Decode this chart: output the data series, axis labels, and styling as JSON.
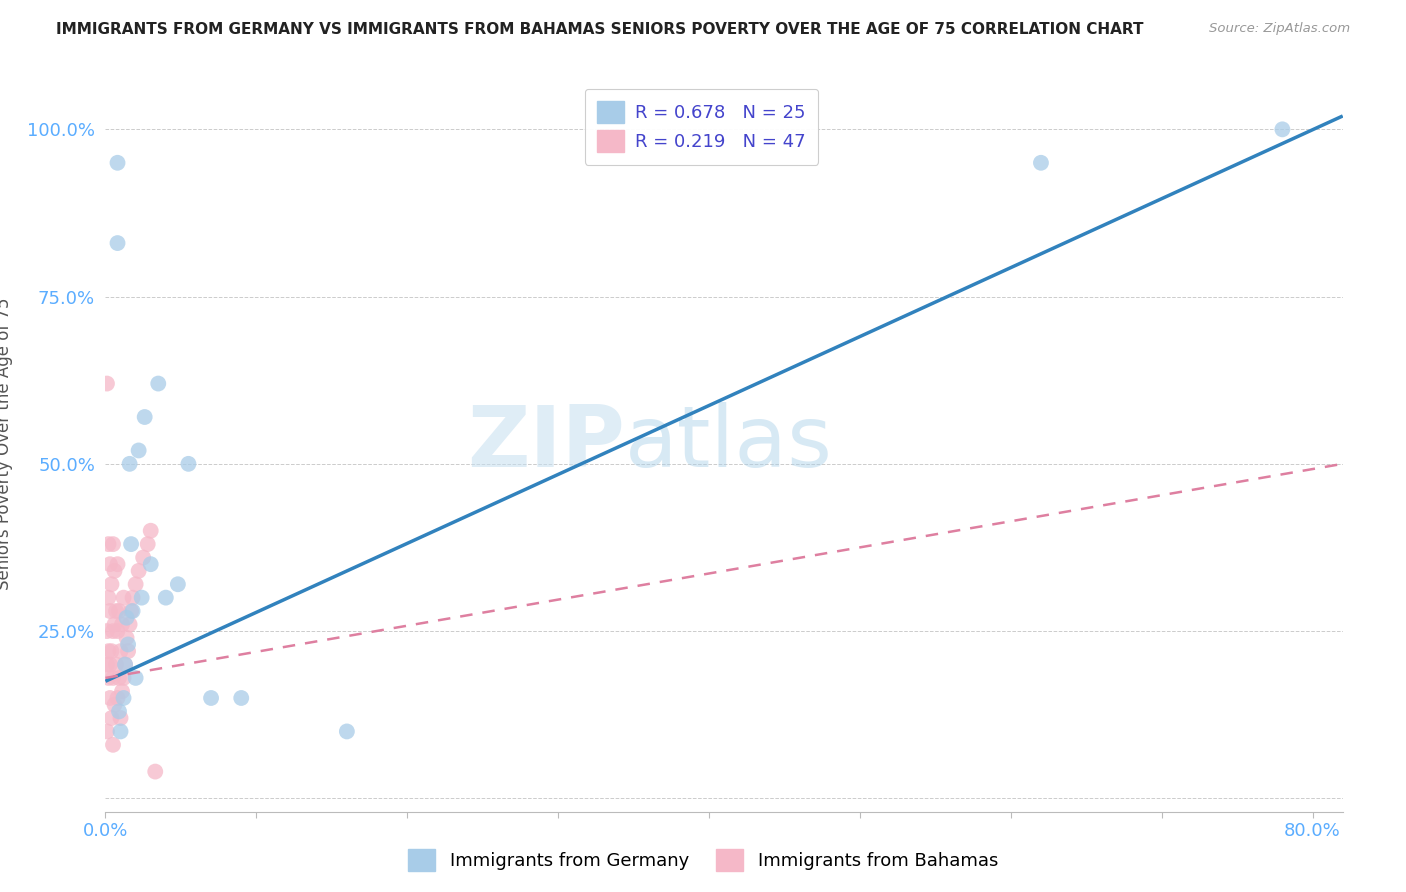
{
  "title": "IMMIGRANTS FROM GERMANY VS IMMIGRANTS FROM BAHAMAS SENIORS POVERTY OVER THE AGE OF 75 CORRELATION CHART",
  "source": "Source: ZipAtlas.com",
  "ylabel": "Seniors Poverty Over the Age of 75",
  "xlim": [
    0.0,
    0.82
  ],
  "ylim": [
    -0.02,
    1.08
  ],
  "watermark_zip": "ZIP",
  "watermark_atlas": "atlas",
  "legend_blue_R": "R = 0.678",
  "legend_blue_N": "N = 25",
  "legend_pink_R": "R = 0.219",
  "legend_pink_N": "N = 47",
  "blue_scatter_color": "#a8cce8",
  "pink_scatter_color": "#f5b8c8",
  "blue_line_color": "#3182bd",
  "pink_line_color": "#de7fa0",
  "grid_color": "#cccccc",
  "axis_tick_color": "#5badff",
  "ylabel_color": "#555555",
  "title_color": "#222222",
  "source_color": "#999999",
  "germany_x": [
    0.008,
    0.008,
    0.01,
    0.012,
    0.013,
    0.014,
    0.015,
    0.016,
    0.018,
    0.02,
    0.022,
    0.024,
    0.026,
    0.03,
    0.035,
    0.04,
    0.048,
    0.055,
    0.07,
    0.09,
    0.16,
    0.62,
    0.78,
    0.009,
    0.017
  ],
  "germany_y": [
    0.95,
    0.83,
    0.1,
    0.15,
    0.2,
    0.27,
    0.23,
    0.5,
    0.28,
    0.18,
    0.52,
    0.3,
    0.57,
    0.35,
    0.62,
    0.3,
    0.32,
    0.5,
    0.15,
    0.15,
    0.1,
    0.95,
    1.0,
    0.13,
    0.38
  ],
  "bahamas_x": [
    0.001,
    0.001,
    0.001,
    0.002,
    0.002,
    0.002,
    0.003,
    0.003,
    0.003,
    0.003,
    0.004,
    0.004,
    0.004,
    0.005,
    0.005,
    0.005,
    0.005,
    0.006,
    0.006,
    0.006,
    0.007,
    0.007,
    0.008,
    0.008,
    0.008,
    0.009,
    0.009,
    0.01,
    0.01,
    0.011,
    0.011,
    0.012,
    0.012,
    0.013,
    0.014,
    0.015,
    0.016,
    0.017,
    0.018,
    0.02,
    0.022,
    0.025,
    0.028,
    0.03,
    0.033,
    0.002,
    0.001
  ],
  "bahamas_y": [
    0.2,
    0.25,
    0.1,
    0.22,
    0.18,
    0.3,
    0.15,
    0.28,
    0.2,
    0.35,
    0.12,
    0.22,
    0.32,
    0.08,
    0.18,
    0.25,
    0.38,
    0.14,
    0.26,
    0.34,
    0.2,
    0.28,
    0.15,
    0.25,
    0.35,
    0.18,
    0.28,
    0.12,
    0.22,
    0.16,
    0.26,
    0.18,
    0.3,
    0.2,
    0.24,
    0.22,
    0.26,
    0.28,
    0.3,
    0.32,
    0.34,
    0.36,
    0.38,
    0.4,
    0.04,
    0.38,
    0.62
  ],
  "blue_line_x": [
    0.0,
    0.82
  ],
  "blue_line_y": [
    0.175,
    1.02
  ],
  "pink_line_x": [
    0.0,
    0.82
  ],
  "pink_line_y": [
    0.18,
    0.5
  ]
}
